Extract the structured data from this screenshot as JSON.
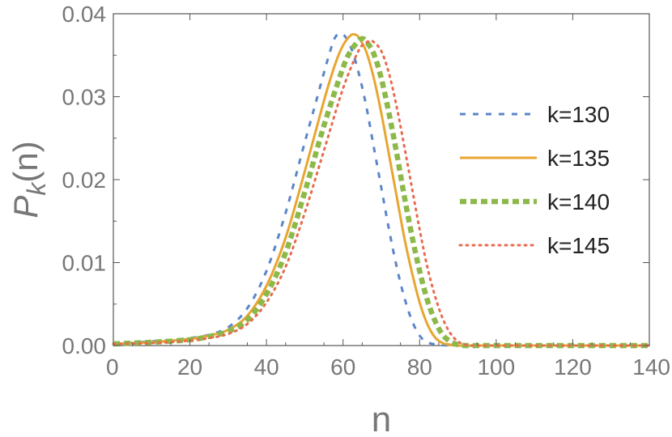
{
  "chart_data": {
    "type": "line",
    "xlabel": "n",
    "ylabel_main": "P",
    "ylabel_sub": "k",
    "ylabel_arg": "(n)",
    "xlim": [
      0,
      140
    ],
    "ylim": [
      0,
      0.04
    ],
    "xticks": [
      "0",
      "20",
      "40",
      "60",
      "80",
      "100",
      "120",
      "140"
    ],
    "yticks": [
      "0.00",
      "0.01",
      "0.02",
      "0.03",
      "0.04"
    ],
    "grid": false,
    "legend_position": "right",
    "series": [
      {
        "name": "k=130",
        "color": "#5B86C8",
        "style": "dashed",
        "x": [
          0,
          10,
          20,
          25,
          30,
          35,
          40,
          45,
          50,
          53,
          56,
          58,
          60,
          62,
          64,
          66,
          68,
          70,
          72,
          74,
          76,
          78,
          80,
          82,
          85,
          90,
          100,
          120,
          140
        ],
        "y": [
          0.0002,
          0.0005,
          0.0009,
          0.0013,
          0.0022,
          0.0045,
          0.009,
          0.016,
          0.0245,
          0.0295,
          0.0345,
          0.0372,
          0.0375,
          0.036,
          0.033,
          0.029,
          0.024,
          0.019,
          0.014,
          0.0095,
          0.0058,
          0.003,
          0.0012,
          0.0004,
          0.0001,
          0.0,
          0.0,
          0.0,
          0.0
        ]
      },
      {
        "name": "k=135",
        "color": "#E8A531",
        "style": "solid",
        "x": [
          0,
          10,
          20,
          25,
          30,
          35,
          40,
          45,
          50,
          55,
          58,
          60,
          62,
          63,
          64,
          66,
          68,
          70,
          72,
          74,
          76,
          78,
          80,
          82,
          84,
          86,
          88,
          90,
          100,
          120,
          140
        ],
        "y": [
          0.0002,
          0.0004,
          0.0008,
          0.0012,
          0.0019,
          0.0036,
          0.0072,
          0.013,
          0.021,
          0.0295,
          0.034,
          0.0362,
          0.0374,
          0.0375,
          0.0372,
          0.0355,
          0.0323,
          0.028,
          0.023,
          0.018,
          0.013,
          0.0088,
          0.0052,
          0.0026,
          0.001,
          0.0003,
          0.0001,
          0.0,
          0.0,
          0.0,
          0.0
        ]
      },
      {
        "name": "k=140",
        "color": "#8DB84A",
        "style": "thick-dashed",
        "x": [
          0,
          10,
          20,
          25,
          30,
          35,
          40,
          45,
          50,
          55,
          60,
          62,
          64,
          65,
          66,
          68,
          70,
          72,
          74,
          76,
          78,
          80,
          82,
          84,
          86,
          88,
          90,
          92,
          100,
          120,
          140
        ],
        "y": [
          0.0002,
          0.0004,
          0.0007,
          0.0011,
          0.0017,
          0.0031,
          0.0062,
          0.0112,
          0.0185,
          0.0265,
          0.0335,
          0.0355,
          0.0367,
          0.037,
          0.0367,
          0.0352,
          0.0322,
          0.028,
          0.0232,
          0.018,
          0.0132,
          0.009,
          0.0055,
          0.003,
          0.0013,
          0.0005,
          0.0001,
          0.0,
          0.0,
          0.0,
          0.0
        ]
      },
      {
        "name": "k=145",
        "color": "#E86B4E",
        "style": "dotted",
        "x": [
          0,
          10,
          20,
          25,
          30,
          35,
          40,
          45,
          50,
          55,
          60,
          64,
          66,
          67,
          68,
          70,
          72,
          74,
          76,
          78,
          80,
          82,
          84,
          86,
          88,
          90,
          92,
          94,
          100,
          120,
          140
        ],
        "y": [
          0.0002,
          0.0003,
          0.0006,
          0.0009,
          0.0014,
          0.0026,
          0.0052,
          0.0095,
          0.016,
          0.0235,
          0.031,
          0.0355,
          0.0365,
          0.0367,
          0.0366,
          0.0355,
          0.0328,
          0.0288,
          0.024,
          0.019,
          0.014,
          0.0095,
          0.006,
          0.0033,
          0.0015,
          0.0005,
          0.0001,
          0.0,
          0.0,
          0.0,
          0.0
        ]
      }
    ]
  }
}
